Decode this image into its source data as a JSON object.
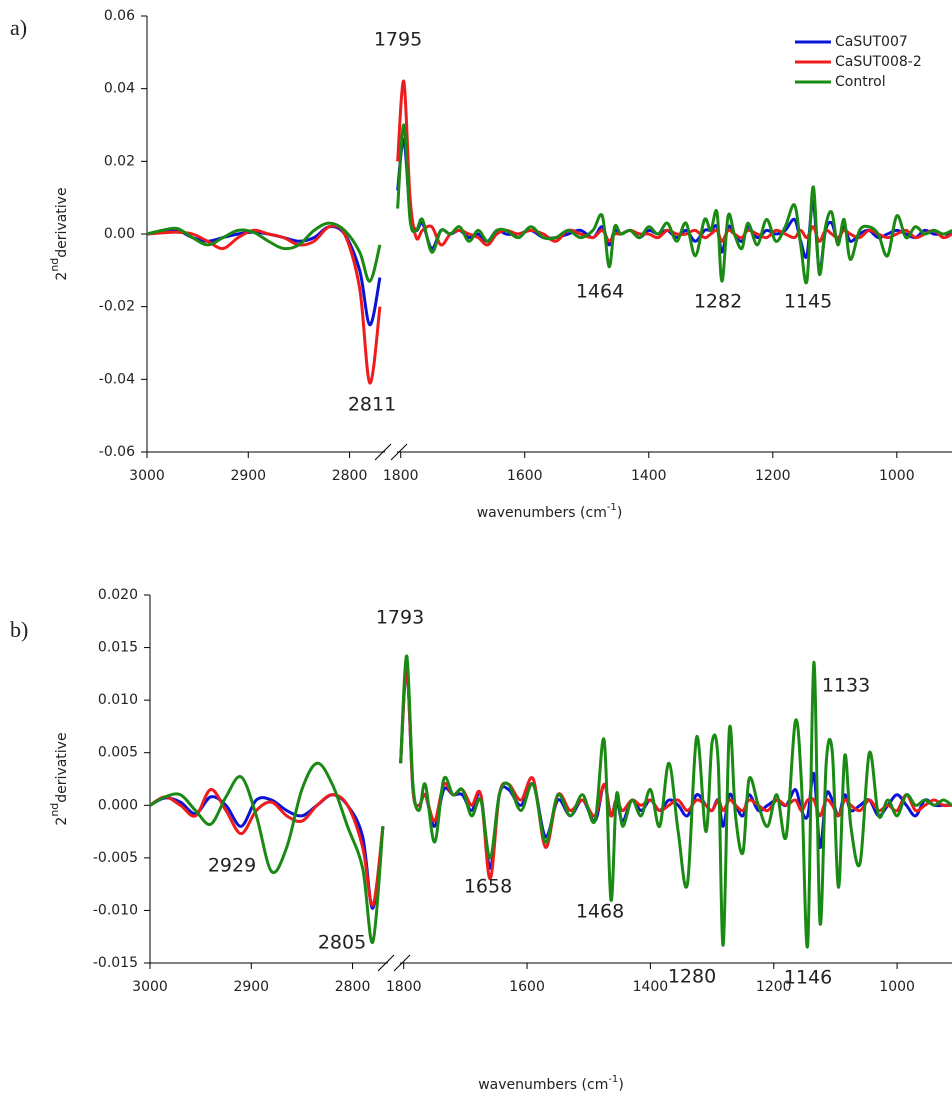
{
  "chart_data": [
    {
      "type": "line",
      "panel_label": "a)",
      "y_label": {
        "base": "2",
        "sup": "nd",
        "text": "derivative"
      },
      "x_label": {
        "text": "wavenumbers (cm",
        "sup": "-1",
        "end": ")"
      },
      "ylim": [
        -0.06,
        0.06
      ],
      "yticks": [
        -0.06,
        -0.04,
        -0.02,
        {
          "value": 0,
          "label": "0.00"
        },
        0.02,
        0.04,
        0.06
      ],
      "segments": [
        {
          "xlim": [
            3000,
            2765
          ],
          "xticks": [
            3000,
            2900,
            2800
          ],
          "x": [
            3000,
            2985,
            2970,
            2955,
            2940,
            2925,
            2910,
            2895,
            2880,
            2865,
            2850,
            2835,
            2820,
            2805,
            2790,
            2780,
            2770
          ]
        },
        {
          "xlim": [
            1806,
            911
          ],
          "xticks": [
            1800,
            1600,
            1400,
            1200,
            1000
          ],
          "x": [
            1805,
            1795,
            1785,
            1775,
            1765,
            1750,
            1735,
            1720,
            1705,
            1690,
            1675,
            1660,
            1645,
            1630,
            1610,
            1590,
            1570,
            1550,
            1530,
            1510,
            1490,
            1475,
            1464,
            1455,
            1445,
            1430,
            1415,
            1400,
            1385,
            1370,
            1355,
            1340,
            1325,
            1310,
            1300,
            1290,
            1282,
            1272,
            1262,
            1250,
            1240,
            1225,
            1210,
            1195,
            1180,
            1165,
            1155,
            1145,
            1135,
            1125,
            1115,
            1105,
            1095,
            1085,
            1075,
            1060,
            1045,
            1030,
            1015,
            1000,
            985,
            970,
            955,
            940,
            925,
            911
          ]
        }
      ],
      "series": [
        {
          "name": "CaSUT007",
          "color": "#0a14d8",
          "values": [
            [
              0,
              0.0005,
              0.001,
              -0.001,
              -0.002,
              -0.001,
              0,
              0.0005,
              0,
              -0.001,
              -0.002,
              -0.001,
              0.002,
              0,
              -0.01,
              -0.025,
              -0.012
            ],
            [
              0.012,
              0.026,
              0.006,
              0.001,
              0.003,
              -0.004,
              0.001,
              0,
              0.001,
              -0.001,
              0,
              -0.002,
              0.001,
              0,
              0,
              0.001,
              -0.001,
              -0.001,
              0,
              0.001,
              -0.001,
              0.002,
              -0.003,
              0.001,
              0,
              0.001,
              -0.001,
              0.001,
              0,
              0.001,
              -0.001,
              0.001,
              -0.002,
              0.001,
              0.001,
              0.002,
              -0.005,
              0.002,
              0,
              -0.002,
              0.002,
              -0.001,
              0.001,
              0,
              0.001,
              0.004,
              -0.002,
              -0.006,
              0.009,
              -0.01,
              0.001,
              0.003,
              -0.002,
              0.002,
              -0.002,
              0,
              0.001,
              -0.001,
              0,
              0.001,
              0,
              -0.001,
              0.001,
              0,
              0,
              0
            ]
          ]
        },
        {
          "name": "CaSUT008-2",
          "color": "#ee1c1c",
          "values": [
            [
              0,
              0.0003,
              0.0005,
              0,
              -0.002,
              -0.004,
              -0.001,
              0.001,
              0,
              -0.001,
              -0.003,
              -0.002,
              0.002,
              0,
              -0.015,
              -0.041,
              -0.02
            ],
            [
              0.02,
              0.042,
              0.01,
              -0.001,
              0.001,
              0.002,
              -0.003,
              0,
              0.001,
              0,
              -0.001,
              -0.003,
              0,
              0.001,
              0,
              0.001,
              0,
              -0.002,
              0.001,
              0,
              -0.001,
              0.001,
              -0.002,
              0,
              0,
              0.001,
              0,
              0,
              -0.001,
              0.001,
              0,
              0,
              0.001,
              -0.001,
              0,
              0.001,
              -0.002,
              0.001,
              0,
              -0.001,
              0.001,
              0,
              -0.001,
              0.001,
              0,
              -0.001,
              0.001,
              -0.001,
              0.002,
              -0.002,
              0.001,
              0,
              -0.001,
              0.001,
              0,
              -0.001,
              0.001,
              0,
              -0.001,
              0,
              0.001,
              -0.001,
              0,
              0.001,
              -0.001,
              0
            ]
          ]
        },
        {
          "name": "Control",
          "color": "#1a8a14",
          "values": [
            [
              0,
              0.001,
              0.0015,
              -0.001,
              -0.003,
              -0.001,
              0.001,
              0.0005,
              -0.002,
              -0.004,
              -0.003,
              0.001,
              0.003,
              0.001,
              -0.005,
              -0.013,
              -0.003
            ],
            [
              0.007,
              0.03,
              0.004,
              0.001,
              0.004,
              -0.005,
              0.001,
              0,
              0.002,
              -0.002,
              0.001,
              -0.002,
              0.001,
              0.001,
              -0.001,
              0.002,
              -0.001,
              -0.001,
              0.001,
              -0.001,
              0.001,
              0.005,
              -0.009,
              0.002,
              0,
              0.001,
              -0.001,
              0.002,
              0,
              0.003,
              -0.002,
              0.003,
              -0.006,
              0.004,
              0.001,
              0.006,
              -0.013,
              0.005,
              0,
              -0.004,
              0.003,
              -0.003,
              0.004,
              -0.002,
              0.002,
              0.008,
              -0.003,
              -0.013,
              0.013,
              -0.011,
              0.002,
              0.006,
              -0.003,
              0.004,
              -0.007,
              0.001,
              0.002,
              0,
              -0.006,
              0.005,
              -0.001,
              0.002,
              0,
              0.001,
              0,
              0.001
            ]
          ]
        }
      ],
      "annotations": [
        1795,
        2811,
        1464,
        1282,
        1145
      ]
    },
    {
      "type": "line",
      "panel_label": "b)",
      "y_label": {
        "base": "2",
        "sup": "nd",
        "text": "derivative"
      },
      "x_label": {
        "text": "wavenumbers (cm",
        "sup": "-1",
        "end": ")"
      },
      "ylim": [
        -0.015,
        0.02
      ],
      "yticks": [
        -0.015,
        {
          "value": -0.01,
          "label": "-0.010"
        },
        -0.005,
        {
          "value": 0,
          "label": "0.000"
        },
        0.005,
        {
          "value": 0.01,
          "label": "0.010"
        },
        0.015,
        {
          "value": 0.02,
          "label": "0.020"
        }
      ],
      "segments": [
        {
          "xlim": [
            3000,
            2765
          ],
          "xticks": [
            3000,
            2900,
            2800
          ],
          "x": [
            3000,
            2985,
            2970,
            2955,
            2940,
            2925,
            2910,
            2895,
            2880,
            2865,
            2850,
            2835,
            2820,
            2805,
            2790,
            2780,
            2770
          ]
        },
        {
          "xlim": [
            1806,
            911
          ],
          "xticks": [
            1800,
            1600,
            1400,
            1200,
            1000
          ],
          "x": [
            1805,
            1795,
            1785,
            1775,
            1765,
            1750,
            1735,
            1720,
            1705,
            1690,
            1675,
            1660,
            1645,
            1630,
            1610,
            1590,
            1570,
            1550,
            1530,
            1510,
            1490,
            1475,
            1464,
            1455,
            1445,
            1430,
            1415,
            1400,
            1385,
            1370,
            1355,
            1340,
            1325,
            1310,
            1300,
            1290,
            1282,
            1272,
            1262,
            1250,
            1240,
            1225,
            1210,
            1195,
            1180,
            1165,
            1155,
            1145,
            1135,
            1125,
            1115,
            1105,
            1095,
            1085,
            1075,
            1060,
            1045,
            1030,
            1015,
            1000,
            985,
            970,
            955,
            940,
            925,
            911
          ]
        }
      ],
      "series": [
        {
          "color": "#0a14d8",
          "values": [
            [
              0,
              0.0007,
              0.0003,
              -0.0008,
              0.0008,
              0,
              -0.002,
              0.0005,
              0.0005,
              -0.0005,
              -0.001,
              0,
              0.001,
              0,
              -0.003,
              -0.0098,
              -0.002
            ],
            [
              0.004,
              0.013,
              0.0015,
              0,
              0.001,
              -0.002,
              0.0015,
              0.001,
              0.001,
              -0.0005,
              0.001,
              -0.006,
              0.001,
              0.0015,
              0,
              0.002,
              -0.003,
              0.0005,
              -0.001,
              0.0005,
              -0.0015,
              0.002,
              -0.001,
              0.0005,
              -0.0015,
              0.0005,
              -0.0005,
              0.0005,
              -0.0005,
              0.0005,
              0,
              -0.001,
              0.001,
              0,
              -0.0005,
              0.0005,
              -0.002,
              0.001,
              0,
              -0.001,
              0.001,
              -0.0005,
              0,
              0.0005,
              0,
              0.0015,
              -0.0005,
              -0.001,
              0.003,
              -0.004,
              0.001,
              0.0005,
              -0.001,
              0.001,
              -0.0005,
              0,
              0.0005,
              -0.001,
              0,
              0.001,
              0,
              -0.001,
              0.0005,
              0,
              0,
              0
            ]
          ]
        },
        {
          "color": "#ee1c1c",
          "values": [
            [
              0,
              0.0008,
              0,
              -0.001,
              0.0015,
              -0.0005,
              -0.0027,
              -0.0005,
              0.0003,
              -0.001,
              -0.0015,
              0,
              0.001,
              0,
              -0.004,
              -0.0095,
              -0.002
            ],
            [
              0.004,
              0.013,
              0.0015,
              0,
              0.001,
              -0.0015,
              0.002,
              0.001,
              0.0015,
              0,
              0.001,
              -0.007,
              0.001,
              0.002,
              0.0005,
              0.0025,
              -0.004,
              0.001,
              -0.0005,
              0.0005,
              -0.001,
              0.002,
              -0.001,
              0.0005,
              -0.0005,
              0.0005,
              0,
              0.0005,
              -0.0005,
              0,
              0.0005,
              -0.0005,
              0.0005,
              0,
              -0.0005,
              0.0005,
              -0.0005,
              0.0005,
              0,
              -0.0005,
              0.0005,
              0,
              -0.0005,
              0.0005,
              0,
              0.0005,
              -0.0005,
              0.0005,
              0.0005,
              -0.001,
              0.0005,
              0,
              -0.001,
              0.0005,
              0,
              -0.0005,
              0.0005,
              -0.0005,
              0,
              -0.0005,
              0.001,
              -0.0005,
              0,
              0.0005,
              0,
              0
            ]
          ]
        },
        {
          "color": "#1a8a14",
          "values": [
            [
              0,
              0.0008,
              0.001,
              -0.0005,
              -0.0018,
              0.0008,
              0.0027,
              -0.001,
              -0.0063,
              -0.004,
              0.0015,
              0.004,
              0.002,
              -0.002,
              -0.006,
              -0.013,
              -0.002
            ],
            [
              0.004,
              0.0142,
              0.002,
              -0.0005,
              0.002,
              -0.0035,
              0.0025,
              0.001,
              0.0015,
              -0.001,
              0.0005,
              -0.005,
              0.001,
              0.002,
              -0.0005,
              0.002,
              -0.0035,
              0.001,
              -0.001,
              0.001,
              -0.0015,
              0.0062,
              -0.009,
              0.001,
              -0.002,
              0.0005,
              -0.001,
              0.0015,
              -0.002,
              0.004,
              -0.0025,
              -0.0075,
              0.0065,
              -0.0025,
              0.006,
              0.004,
              -0.0133,
              0.0072,
              -0.001,
              -0.0045,
              0.0025,
              0,
              -0.002,
              0.001,
              -0.003,
              0.008,
              0.002,
              -0.0133,
              0.0136,
              -0.0112,
              0.004,
              0.005,
              -0.0078,
              0.0047,
              -0.002,
              -0.0055,
              0.005,
              -0.001,
              0.0005,
              -0.001,
              0.001,
              0,
              0.0005,
              0,
              0.0005,
              0
            ]
          ]
        }
      ],
      "annotations": [
        1793,
        1133,
        2929,
        2805,
        1658,
        1468,
        1280,
        1146
      ]
    }
  ]
}
